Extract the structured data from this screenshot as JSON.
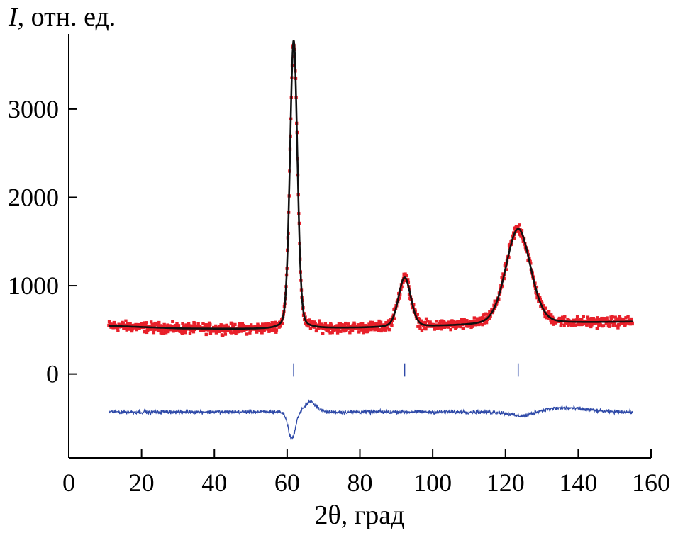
{
  "chart_data": {
    "type": "line",
    "ylabel_symbol": "I",
    "ylabel_rest": ", отн. ед.",
    "xlabel": "2θ, град",
    "xlim": [
      0,
      160
    ],
    "ylim": [
      -950,
      3850
    ],
    "x_ticks": [
      0,
      20,
      40,
      60,
      80,
      100,
      120,
      140,
      160
    ],
    "x_tick_labels": [
      "0",
      "20",
      "40",
      "60",
      "80",
      "100",
      "120",
      "140",
      "160"
    ],
    "y_ticks": [
      0,
      1000,
      2000,
      3000
    ],
    "y_tick_labels": [
      "0",
      "1000",
      "2000",
      "3000"
    ],
    "grid": false,
    "series": [
      {
        "role": "observed",
        "color": "#e8202a",
        "x_range": [
          11,
          155
        ],
        "background": [
          [
            11,
            545
          ],
          [
            30,
            515
          ],
          [
            55,
            505
          ],
          [
            80,
            520
          ],
          [
            100,
            535
          ],
          [
            120,
            560
          ],
          [
            155,
            590
          ]
        ],
        "peaks": [
          {
            "center": 61.8,
            "height": 3270,
            "fwhm": 2.4
          },
          {
            "center": 92.3,
            "height": 560,
            "fwhm": 4.0
          },
          {
            "center": 123.5,
            "height": 1080,
            "fwhm": 8.0
          }
        ]
      },
      {
        "role": "calculated",
        "color": "#111111"
      },
      {
        "role": "difference",
        "color": "#2f4aa8",
        "offset": -430
      }
    ],
    "bragg_positions": [
      61.8,
      92.3,
      123.5
    ],
    "bragg_color": "#2f4aa8"
  }
}
